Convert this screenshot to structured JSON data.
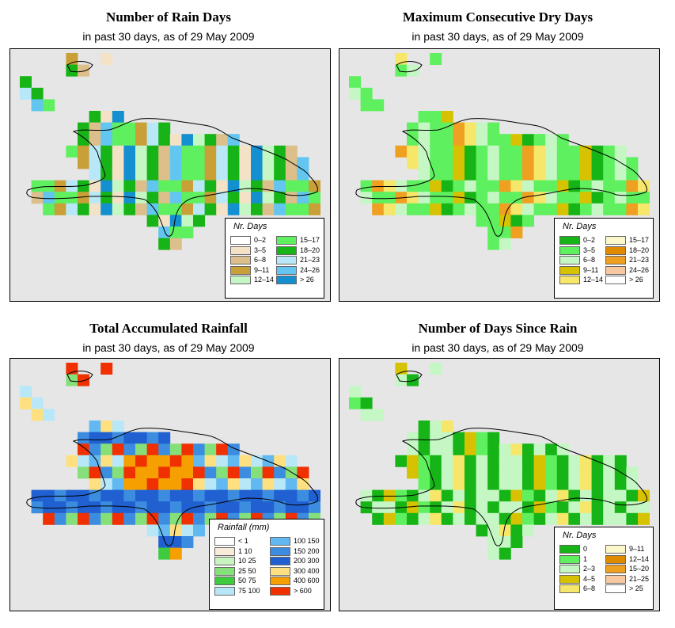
{
  "panels": [
    {
      "title": "Number of Rain Days",
      "subtitle": "in past 30 days, as of  29 May 2009",
      "legend_title": "Nr. Days",
      "legend": [
        {
          "label": "0–2",
          "color": "#ffffff"
        },
        {
          "label": "3–5",
          "color": "#f3e2c6"
        },
        {
          "label": "6–8",
          "color": "#dcbf8a"
        },
        {
          "label": "9–11",
          "color": "#c9a038"
        },
        {
          "label": "12–14",
          "color": "#c4f7c4"
        },
        {
          "label": "15–17",
          "color": "#5ef05e"
        },
        {
          "label": "18–20",
          "color": "#16b416"
        },
        {
          "label": "21–23",
          "color": "#b8e8f8"
        },
        {
          "label": "24–26",
          "color": "#62c6f0"
        },
        {
          "label": "> 26",
          "color": "#1490d0"
        }
      ]
    },
    {
      "title": "Maximum Consecutive Dry Days",
      "subtitle": "in past 30 days, as of  29 May 2009",
      "legend_title": "Nr. Days",
      "legend": [
        {
          "label": "0–2",
          "color": "#16b416"
        },
        {
          "label": "3–5",
          "color": "#5ef05e"
        },
        {
          "label": "6–8",
          "color": "#c4f7c4"
        },
        {
          "label": "9–11",
          "color": "#d6c200"
        },
        {
          "label": "12–14",
          "color": "#f6e66a"
        },
        {
          "label": "15–17",
          "color": "#fbf7c8"
        },
        {
          "label": "18–20",
          "color": "#e08a00"
        },
        {
          "label": "21–23",
          "color": "#f0a020"
        },
        {
          "label": "24–26",
          "color": "#f8c8a0"
        },
        {
          "label": "> 26",
          "color": "#ffffff"
        }
      ]
    },
    {
      "title": "Total Accumulated Rainfall",
      "subtitle": "in past 30 days, as of  29 May 2009",
      "legend_title": "Rainfall (mm)",
      "legend": [
        {
          "label": "< 1",
          "color": "#ffffff"
        },
        {
          "label": "1   10",
          "color": "#f8ecd8"
        },
        {
          "label": "10   25",
          "color": "#c8f4c0"
        },
        {
          "label": "25   50",
          "color": "#86e07a"
        },
        {
          "label": "50   75",
          "color": "#3ecc3e"
        },
        {
          "label": "75   100",
          "color": "#b8e8f8"
        },
        {
          "label": "100   150",
          "color": "#62b8f0"
        },
        {
          "label": "150   200",
          "color": "#3c8ce0"
        },
        {
          "label": "200   300",
          "color": "#2060d0"
        },
        {
          "label": "300   400",
          "color": "#ffe080"
        },
        {
          "label": "400   600",
          "color": "#f5a000"
        },
        {
          "label": "> 600",
          "color": "#f03000"
        }
      ]
    },
    {
      "title": "Number of Days Since Rain",
      "subtitle": "in past 30 days, as of  29 May 2009",
      "legend_title": "Nr. Days",
      "legend": [
        {
          "label": "0",
          "color": "#16b416"
        },
        {
          "label": "1",
          "color": "#5ef05e"
        },
        {
          "label": "2–3",
          "color": "#c4f7c4"
        },
        {
          "label": "4–5",
          "color": "#d6c200"
        },
        {
          "label": "6–8",
          "color": "#f6e66a"
        },
        {
          "label": "9–11",
          "color": "#fbf7c8"
        },
        {
          "label": "12–14",
          "color": "#e08a00"
        },
        {
          "label": "15–20",
          "color": "#f0a020"
        },
        {
          "label": "21–25",
          "color": "#f8c8a0"
        },
        {
          "label": "> 25",
          "color": "#ffffff"
        }
      ]
    }
  ]
}
